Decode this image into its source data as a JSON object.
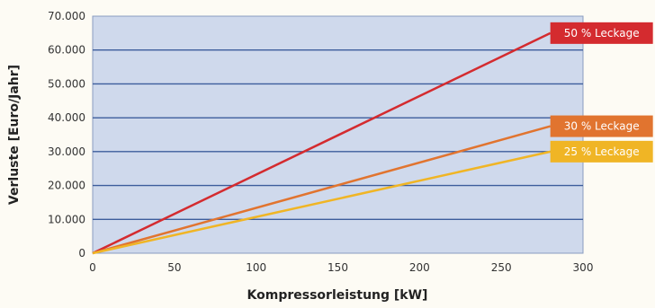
{
  "chart_data": {
    "type": "line",
    "title": "",
    "xlabel": "Kompressorleistung [kW]",
    "ylabel": "Verluste [Euro/Jahr]",
    "xlim": [
      0,
      300
    ],
    "ylim": [
      0,
      70000
    ],
    "x_ticks": [
      0,
      50,
      100,
      150,
      200,
      250,
      300
    ],
    "x_tick_labels": [
      "0",
      "50",
      "100",
      "150",
      "200",
      "250",
      "300"
    ],
    "y_ticks": [
      0,
      10000,
      20000,
      30000,
      40000,
      50000,
      60000,
      70000
    ],
    "y_tick_labels": [
      "0",
      "10.000",
      "20.000",
      "30.000",
      "40.000",
      "50.000",
      "60.000",
      "70.000"
    ],
    "grid": "horizontal",
    "legend_placement": "right-end-labels",
    "plot_background": "#cfd9ec",
    "series": [
      {
        "name": "50 % Leckage",
        "color": "#d42b2f",
        "x": [
          0,
          280
        ],
        "y": [
          0,
          65000
        ]
      },
      {
        "name": "30 % Leckage",
        "color": "#e1742f",
        "x": [
          0,
          280
        ],
        "y": [
          0,
          37500
        ]
      },
      {
        "name": "25 % Leckage",
        "color": "#f0b525",
        "x": [
          0,
          280
        ],
        "y": [
          0,
          30000
        ]
      }
    ]
  }
}
